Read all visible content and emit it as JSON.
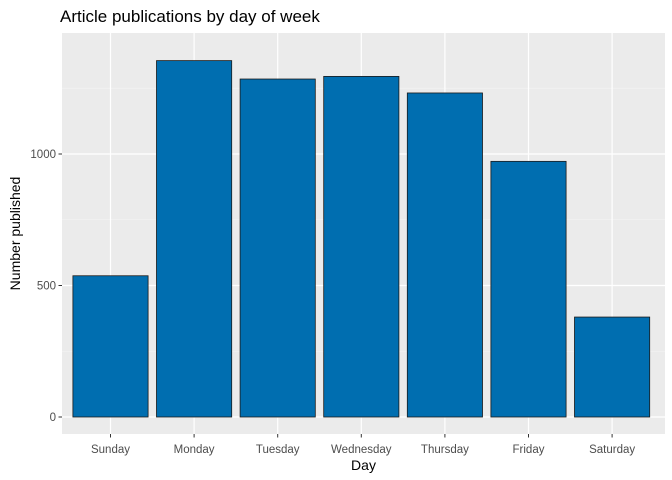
{
  "chart_data": {
    "type": "bar",
    "title": "Article publications by day of week",
    "xlabel": "Day",
    "ylabel": "Number published",
    "categories": [
      "Sunday",
      "Monday",
      "Tuesday",
      "Wednesday",
      "Thursday",
      "Friday",
      "Saturday"
    ],
    "values": [
      537,
      1355,
      1285,
      1295,
      1232,
      972,
      380
    ],
    "ylim": [
      0,
      1460
    ],
    "yticks": [
      0,
      500,
      1000
    ],
    "ytick_labels": [
      "0",
      "500",
      "1000"
    ],
    "grid": true,
    "legend": "none",
    "colors": {
      "bar_fill": "#006EB0",
      "bar_stroke": "#1a1a1a",
      "panel_background": "#EBEBEB",
      "grid_major": "#FFFFFF",
      "grid_minor": "#F5F5F5"
    }
  }
}
